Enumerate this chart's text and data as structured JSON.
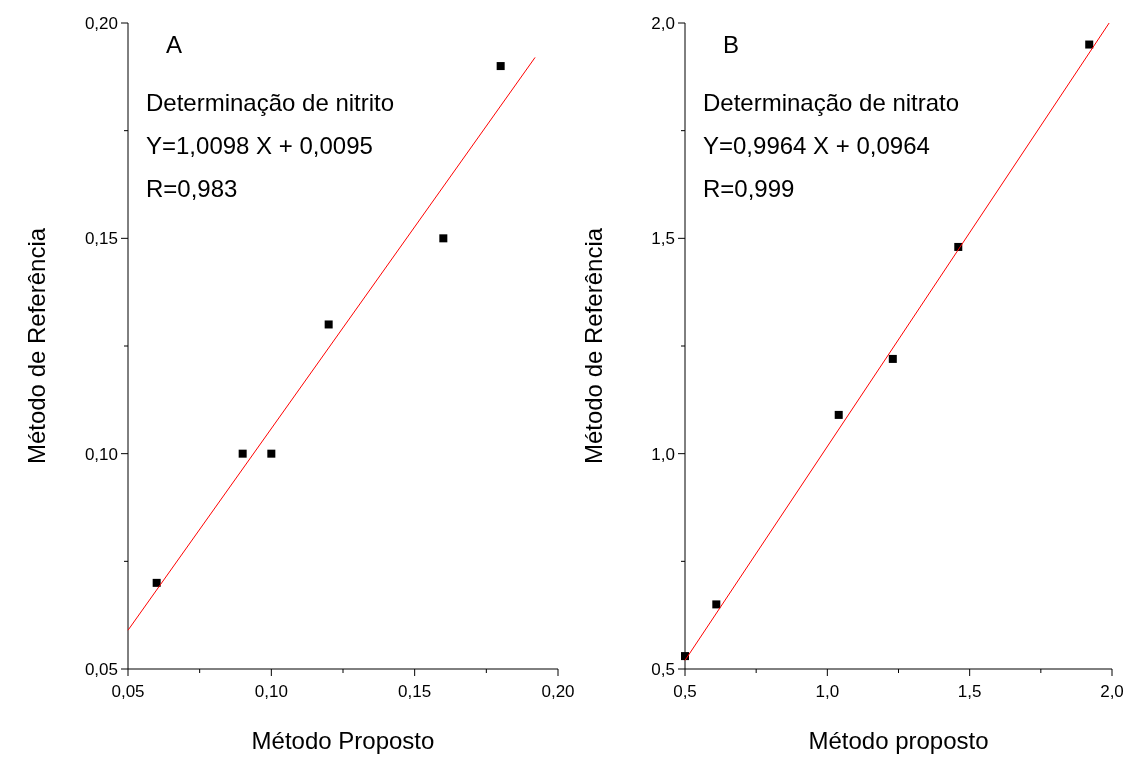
{
  "chart_data": [
    {
      "type": "scatter",
      "xlabel": "Método Proposto",
      "ylabel": "Método de Referência",
      "marker": "square",
      "grid": false,
      "annotations": [
        "A",
        "Determinação de nitrito",
        "Y=1,0098 X + 0,0095",
        "R=0,983"
      ],
      "xlim": [
        0.05,
        0.2
      ],
      "ylim": [
        0.05,
        0.2
      ],
      "xticks": [
        {
          "value": 0.05,
          "label": "0,05"
        },
        {
          "value": 0.075,
          "label": null
        },
        {
          "value": 0.1,
          "label": "0,10"
        },
        {
          "value": 0.125,
          "label": null
        },
        {
          "value": 0.15,
          "label": "0,15"
        },
        {
          "value": 0.175,
          "label": null
        },
        {
          "value": 0.2,
          "label": "0,20"
        }
      ],
      "yticks": [
        {
          "value": 0.05,
          "label": "0,05"
        },
        {
          "value": 0.075,
          "label": null
        },
        {
          "value": 0.1,
          "label": "0,10"
        },
        {
          "value": 0.125,
          "label": null
        },
        {
          "value": 0.15,
          "label": "0,15"
        },
        {
          "value": 0.175,
          "label": null
        },
        {
          "value": 0.2,
          "label": "0,20"
        }
      ],
      "series": [
        {
          "color": "#000000",
          "x": [
            0.06,
            0.09,
            0.1,
            0.12,
            0.16,
            0.18
          ],
          "values": [
            0.07,
            0.1,
            0.1,
            0.13,
            0.15,
            0.19
          ]
        },
        {
          "type": "line",
          "color": "#ff0000",
          "marker": "none",
          "x": [
            0.05,
            0.192
          ],
          "values": [
            0.059,
            0.192
          ]
        }
      ]
    },
    {
      "type": "scatter",
      "xlabel": "Método proposto",
      "ylabel": "Método de Referência",
      "marker": "square",
      "grid": false,
      "annotations": [
        "B",
        "Determinação de nitrato",
        "Y=0,9964 X + 0,0964",
        "R=0,999"
      ],
      "xlim": [
        0.5,
        2.0
      ],
      "ylim": [
        0.5,
        2.0
      ],
      "xticks": [
        {
          "value": 0.5,
          "label": "0,5"
        },
        {
          "value": 0.75,
          "label": null
        },
        {
          "value": 1.0,
          "label": "1,0"
        },
        {
          "value": 1.25,
          "label": null
        },
        {
          "value": 1.5,
          "label": "1,5"
        },
        {
          "value": 1.75,
          "label": null
        },
        {
          "value": 2.0,
          "label": "2,0"
        }
      ],
      "yticks": [
        {
          "value": 0.5,
          "label": "0,5"
        },
        {
          "value": 0.75,
          "label": null
        },
        {
          "value": 1.0,
          "label": "1,0"
        },
        {
          "value": 1.25,
          "label": null
        },
        {
          "value": 1.5,
          "label": "1,5"
        },
        {
          "value": 1.75,
          "label": null
        },
        {
          "value": 2.0,
          "label": "2,0"
        }
      ],
      "series": [
        {
          "color": "#000000",
          "x": [
            0.5,
            0.61,
            1.04,
            1.23,
            1.46,
            1.92
          ],
          "values": [
            0.53,
            0.65,
            1.09,
            1.22,
            1.48,
            1.95
          ]
        },
        {
          "type": "line",
          "color": "#ff0000",
          "marker": "none",
          "x": [
            0.5,
            1.99
          ],
          "values": [
            0.52,
            2.0
          ]
        }
      ]
    }
  ]
}
